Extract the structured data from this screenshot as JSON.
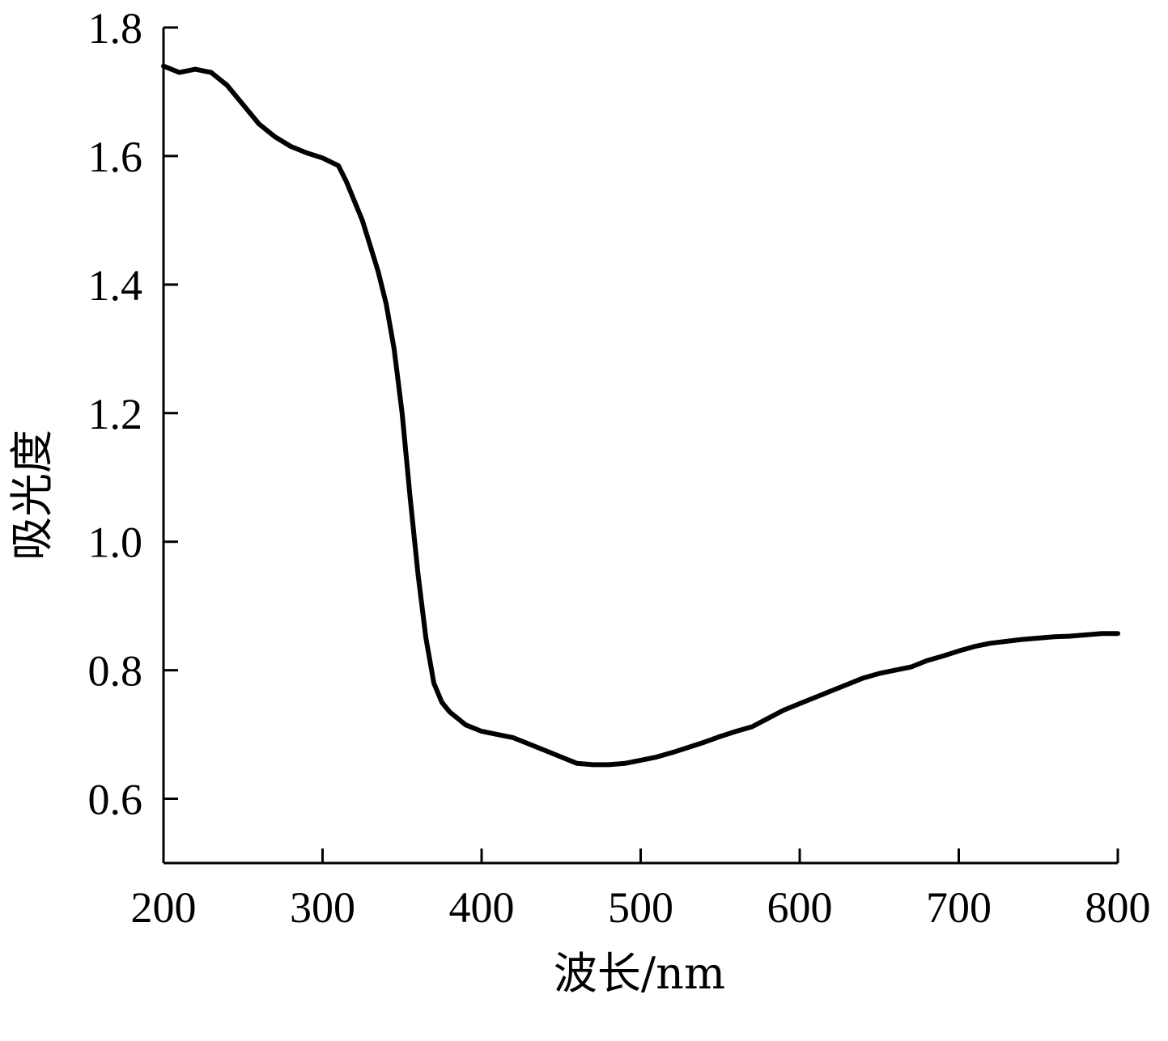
{
  "chart_data": {
    "type": "line",
    "xlabel": "波长/nm",
    "ylabel": "吸光度",
    "xlim": [
      200,
      800
    ],
    "ylim": [
      0.5,
      1.8
    ],
    "xticks": [
      200,
      300,
      400,
      500,
      600,
      700,
      800
    ],
    "yticks": [
      0.6,
      0.8,
      1.0,
      1.2,
      1.4,
      1.6,
      1.8
    ],
    "xtick_labels": [
      "200",
      "300",
      "400",
      "500",
      "600",
      "700",
      "800"
    ],
    "ytick_labels": [
      "0.6",
      "0.8",
      "1.0",
      "1.2",
      "1.4",
      "1.6",
      "1.8"
    ],
    "grid": false,
    "line_color": "#000000",
    "series": [
      {
        "x": [
          200,
          210,
          220,
          230,
          240,
          250,
          260,
          270,
          280,
          290,
          300,
          310,
          315,
          320,
          325,
          330,
          335,
          340,
          345,
          350,
          355,
          360,
          365,
          370,
          375,
          380,
          385,
          390,
          400,
          410,
          420,
          430,
          440,
          450,
          460,
          470,
          480,
          490,
          500,
          510,
          520,
          530,
          540,
          550,
          560,
          570,
          580,
          590,
          600,
          610,
          620,
          630,
          640,
          650,
          660,
          670,
          680,
          690,
          700,
          710,
          720,
          730,
          740,
          750,
          760,
          770,
          780,
          790,
          800
        ],
        "y": [
          1.74,
          1.73,
          1.735,
          1.73,
          1.71,
          1.68,
          1.65,
          1.63,
          1.615,
          1.605,
          1.597,
          1.585,
          1.56,
          1.53,
          1.5,
          1.46,
          1.42,
          1.37,
          1.3,
          1.2,
          1.07,
          0.95,
          0.85,
          0.78,
          0.75,
          0.735,
          0.725,
          0.715,
          0.705,
          0.7,
          0.695,
          0.685,
          0.675,
          0.665,
          0.655,
          0.653,
          0.653,
          0.655,
          0.66,
          0.665,
          0.672,
          0.68,
          0.688,
          0.697,
          0.705,
          0.712,
          0.725,
          0.738,
          0.748,
          0.758,
          0.768,
          0.778,
          0.788,
          0.795,
          0.8,
          0.805,
          0.815,
          0.822,
          0.83,
          0.837,
          0.842,
          0.845,
          0.848,
          0.85,
          0.852,
          0.853,
          0.855,
          0.857,
          0.857
        ]
      }
    ]
  }
}
